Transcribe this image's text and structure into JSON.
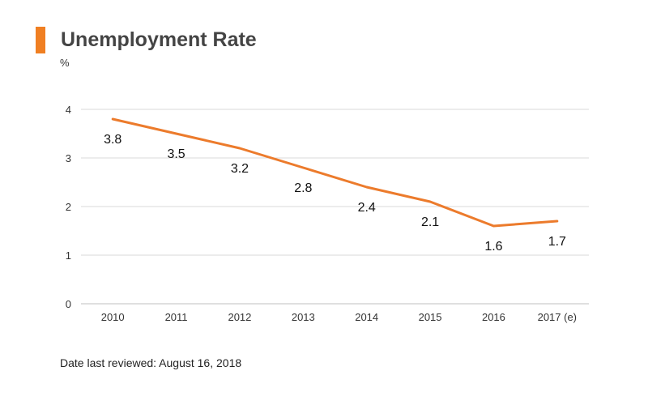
{
  "header": {
    "title": "Unemployment Rate",
    "unit": "%"
  },
  "footer": {
    "note": "Date last reviewed: August 16, 2018"
  },
  "colors": {
    "accent": "#f07f22",
    "line": "#ec7b2c",
    "grid": "#d9d9d9"
  },
  "chart_data": {
    "type": "line",
    "title": "Unemployment Rate",
    "ylabel": "%",
    "xlabel": "",
    "categories": [
      "2010",
      "2011",
      "2012",
      "2013",
      "2014",
      "2015",
      "2016",
      "2017 (e)"
    ],
    "series": [
      {
        "name": "Unemployment Rate",
        "values": [
          3.8,
          3.5,
          3.2,
          2.8,
          2.4,
          2.1,
          1.6,
          1.7
        ]
      }
    ],
    "data_labels": [
      "3.8",
      "3.5",
      "3.2",
      "2.8",
      "2.4",
      "2.1",
      "1.6",
      "1.7"
    ],
    "yticks": [
      "0",
      "1",
      "2",
      "3",
      "4"
    ],
    "ylim": [
      0,
      4
    ],
    "grid": true,
    "legend": "none"
  }
}
